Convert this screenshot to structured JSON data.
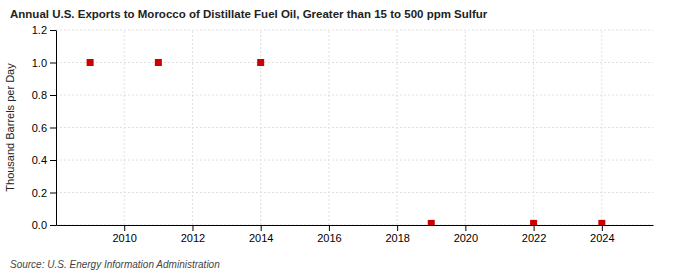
{
  "chart_data": {
    "type": "scatter",
    "title": "Annual U.S. Exports to Morocco of Distillate Fuel Oil, Greater than 15 to 500 ppm Sulfur",
    "ylabel": "Thousand Barrels per Day",
    "source": "Source: U.S. Energy Information Administration",
    "x": [
      2009,
      2011,
      2014,
      2019,
      2022,
      2024
    ],
    "values": [
      1.0,
      1.0,
      1.0,
      0.01,
      0.01,
      0.01
    ],
    "color": "#cc0000",
    "marker": "square",
    "xlim": [
      2008.0,
      2025.5
    ],
    "ylim": [
      0,
      1.2
    ],
    "xticks": [
      2010,
      2012,
      2014,
      2016,
      2018,
      2020,
      2022,
      2024
    ],
    "yticks": [
      {
        "value": 0.0,
        "label": "0.0"
      },
      0.2,
      0.4,
      0.6,
      0.8,
      {
        "value": 1.0,
        "label": "1.0"
      },
      1.2
    ],
    "grid": true
  }
}
